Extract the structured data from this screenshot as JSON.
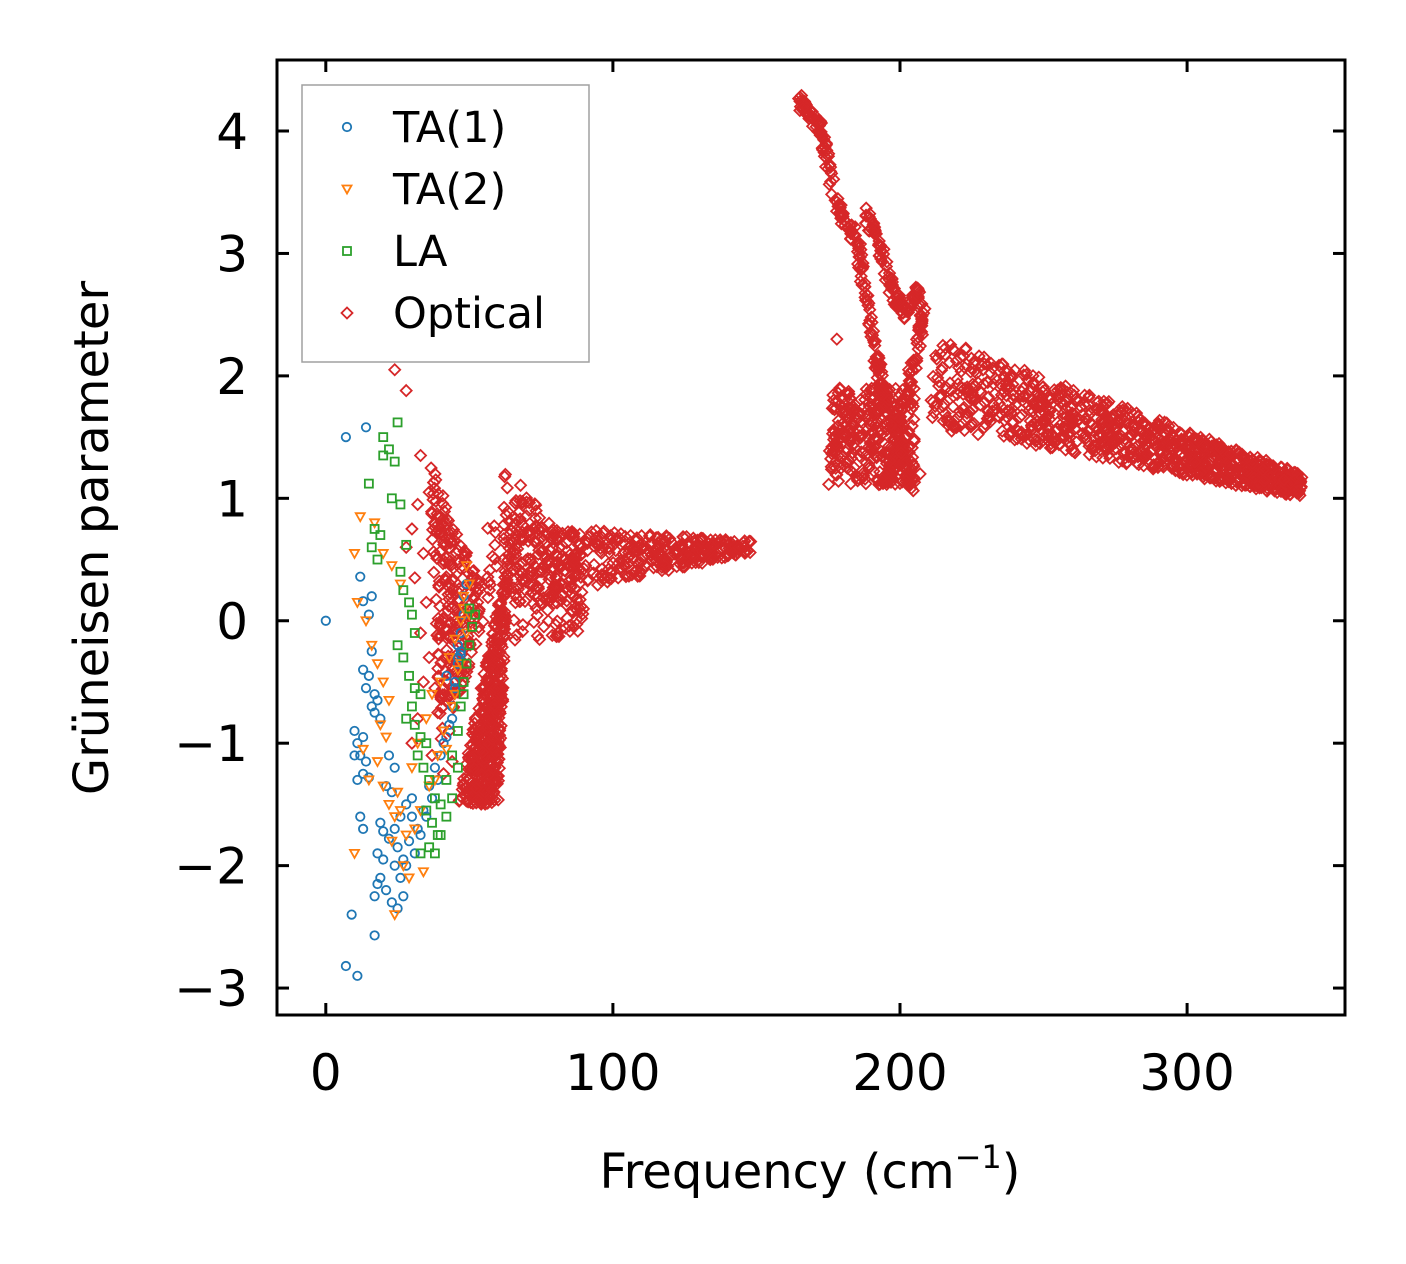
{
  "chart_data": {
    "type": "scatter",
    "title": "",
    "xlabel": "Frequency (cm",
    "xlabel_sup": "−1",
    "xlabel_close": ")",
    "ylabel": "Grüneisen parameter",
    "xlim": [
      -17,
      355
    ],
    "ylim": [
      -3.22,
      4.58
    ],
    "xticks": [
      0,
      100,
      200,
      300
    ],
    "yticks": [
      -3,
      -2,
      -1,
      0,
      1,
      2,
      3,
      4
    ],
    "xtick_labels": [
      "0",
      "100",
      "200",
      "300"
    ],
    "ytick_labels": [
      "−3",
      "−2",
      "−1",
      "0",
      "1",
      "2",
      "3",
      "4"
    ],
    "legend_position": "top-left",
    "series": [
      {
        "name": "TA(1)",
        "marker": "circle",
        "color": "#1f77b4",
        "points": [
          [
            0,
            0
          ],
          [
            7,
            1.5
          ],
          [
            14,
            1.58
          ],
          [
            12,
            0.36
          ],
          [
            13,
            0.16
          ],
          [
            15,
            0.05
          ],
          [
            16,
            0.2
          ],
          [
            13,
            -0.4
          ],
          [
            16,
            -0.25
          ],
          [
            15,
            -0.45
          ],
          [
            14,
            -0.55
          ],
          [
            17,
            -0.6
          ],
          [
            18,
            -0.65
          ],
          [
            16,
            -0.7
          ],
          [
            17,
            -0.75
          ],
          [
            19,
            -0.8
          ],
          [
            10,
            -0.9
          ],
          [
            11,
            -1.0
          ],
          [
            13,
            -0.95
          ],
          [
            10,
            -1.1
          ],
          [
            12,
            -1.1
          ],
          [
            14,
            -1.15
          ],
          [
            13,
            -1.25
          ],
          [
            15,
            -1.28
          ],
          [
            11,
            -1.3
          ],
          [
            22,
            -1.1
          ],
          [
            24,
            -1.2
          ],
          [
            21,
            -1.35
          ],
          [
            23,
            -1.4
          ],
          [
            12,
            -1.6
          ],
          [
            13,
            -1.7
          ],
          [
            19,
            -1.65
          ],
          [
            20,
            -1.72
          ],
          [
            22,
            -1.78
          ],
          [
            18,
            -1.9
          ],
          [
            20,
            -1.95
          ],
          [
            19,
            -2.1
          ],
          [
            18,
            -2.15
          ],
          [
            21,
            -2.2
          ],
          [
            17,
            -2.25
          ],
          [
            24,
            -2.0
          ],
          [
            26,
            -2.1
          ],
          [
            23,
            -2.3
          ],
          [
            25,
            -2.35
          ],
          [
            27,
            -2.25
          ],
          [
            9,
            -2.4
          ],
          [
            17,
            -2.57
          ],
          [
            7,
            -2.82
          ],
          [
            11,
            -2.9
          ],
          [
            28,
            -1.5
          ],
          [
            30,
            -1.6
          ],
          [
            32,
            -1.7
          ],
          [
            34,
            -1.55
          ],
          [
            36,
            -1.35
          ],
          [
            38,
            -1.2
          ],
          [
            40,
            -1.1
          ],
          [
            42,
            -0.95
          ],
          [
            43,
            -0.85
          ],
          [
            44,
            -0.7
          ],
          [
            45,
            -0.5
          ],
          [
            46,
            -0.35
          ],
          [
            47,
            -0.25
          ],
          [
            47,
            -0.1
          ],
          [
            48,
            0.05
          ],
          [
            48,
            0.2
          ],
          [
            49,
            0.3
          ],
          [
            29,
            -1.8
          ],
          [
            31,
            -1.9
          ],
          [
            33,
            -1.75
          ],
          [
            35,
            -1.6
          ],
          [
            37,
            -1.45
          ],
          [
            39,
            -1.3
          ],
          [
            41,
            -1.0
          ],
          [
            44,
            -0.8
          ],
          [
            46,
            -0.3
          ],
          [
            46,
            -0.2
          ],
          [
            47,
            -0.28
          ],
          [
            45,
            -0.55
          ],
          [
            42,
            -0.45
          ],
          [
            27,
            -1.95
          ],
          [
            25,
            -1.85
          ],
          [
            24,
            -1.7
          ],
          [
            26,
            -1.6
          ],
          [
            28,
            -2.0
          ],
          [
            30,
            -1.45
          ]
        ]
      },
      {
        "name": "TA(2)",
        "marker": "triangle-down",
        "color": "#ff7f0e",
        "points": [
          [
            12,
            0.85
          ],
          [
            17,
            0.8
          ],
          [
            10,
            0.55
          ],
          [
            20,
            0.55
          ],
          [
            23,
            0.45
          ],
          [
            26,
            0.3
          ],
          [
            11,
            0.15
          ],
          [
            14,
            0.0
          ],
          [
            16,
            -0.2
          ],
          [
            18,
            -0.35
          ],
          [
            20,
            -0.5
          ],
          [
            22,
            -0.65
          ],
          [
            19,
            -0.85
          ],
          [
            21,
            -0.95
          ],
          [
            13,
            -1.05
          ],
          [
            18,
            -1.15
          ],
          [
            15,
            -1.3
          ],
          [
            20,
            -1.35
          ],
          [
            22,
            -1.5
          ],
          [
            25,
            -1.4
          ],
          [
            24,
            -1.6
          ],
          [
            26,
            -1.55
          ],
          [
            28,
            -1.75
          ],
          [
            23,
            -1.8
          ],
          [
            10,
            -1.9
          ],
          [
            27,
            -2.0
          ],
          [
            29,
            -2.1
          ],
          [
            34,
            -2.05
          ],
          [
            24,
            -2.4
          ],
          [
            30,
            -1.2
          ],
          [
            32,
            -1.0
          ],
          [
            35,
            -0.8
          ],
          [
            37,
            -0.6
          ],
          [
            40,
            -0.5
          ],
          [
            43,
            -0.3
          ],
          [
            45,
            -0.15
          ],
          [
            47,
            0.0
          ],
          [
            48,
            0.2
          ],
          [
            49,
            0.45
          ],
          [
            50,
            0.3
          ],
          [
            48,
            0.1
          ],
          [
            46,
            -0.4
          ],
          [
            44,
            -0.7
          ],
          [
            41,
            -0.9
          ],
          [
            39,
            -1.1
          ],
          [
            36,
            -1.35
          ],
          [
            33,
            -1.55
          ],
          [
            31,
            -1.7
          ],
          [
            38,
            -1.3
          ],
          [
            42,
            -1.05
          ],
          [
            45,
            -0.6
          ],
          [
            47,
            -0.35
          ],
          [
            49,
            -0.1
          ],
          [
            50,
            0.05
          ]
        ]
      },
      {
        "name": "LA",
        "marker": "square",
        "color": "#2ca02c",
        "points": [
          [
            25,
            1.62
          ],
          [
            20,
            1.5
          ],
          [
            22,
            1.4
          ],
          [
            20,
            1.35
          ],
          [
            24,
            1.3
          ],
          [
            15,
            1.12
          ],
          [
            23,
            1.0
          ],
          [
            26,
            0.95
          ],
          [
            17,
            0.75
          ],
          [
            19,
            0.7
          ],
          [
            16,
            0.6
          ],
          [
            18,
            0.5
          ],
          [
            28,
            0.62
          ],
          [
            26,
            0.4
          ],
          [
            27,
            0.25
          ],
          [
            29,
            0.15
          ],
          [
            30,
            0.05
          ],
          [
            31,
            -0.1
          ],
          [
            25,
            -0.2
          ],
          [
            27,
            -0.3
          ],
          [
            29,
            -0.45
          ],
          [
            31,
            -0.55
          ],
          [
            33,
            -0.6
          ],
          [
            30,
            -0.7
          ],
          [
            28,
            -0.8
          ],
          [
            31,
            -0.85
          ],
          [
            33,
            -0.95
          ],
          [
            35,
            -1.0
          ],
          [
            32,
            -1.1
          ],
          [
            34,
            -1.2
          ],
          [
            36,
            -1.3
          ],
          [
            38,
            -1.45
          ],
          [
            35,
            -1.55
          ],
          [
            37,
            -1.65
          ],
          [
            39,
            -1.75
          ],
          [
            36,
            -1.85
          ],
          [
            40,
            -1.5
          ],
          [
            42,
            -1.3
          ],
          [
            44,
            -1.1
          ],
          [
            46,
            -0.9
          ],
          [
            47,
            -0.7
          ],
          [
            48,
            -0.5
          ],
          [
            49,
            -0.35
          ],
          [
            50,
            -0.2
          ],
          [
            51,
            -0.05
          ],
          [
            52,
            0.05
          ],
          [
            50,
            0.1
          ],
          [
            48,
            -0.6
          ],
          [
            46,
            -1.2
          ],
          [
            44,
            -1.45
          ],
          [
            42,
            -1.6
          ],
          [
            40,
            -1.75
          ],
          [
            38,
            -1.9
          ],
          [
            33,
            -1.9
          ]
        ]
      },
      {
        "name": "Optical",
        "marker": "diamond",
        "color": "#d62728",
        "clusters": [
          {
            "type": "triangle",
            "base": [
              [
                46,
                -1.5
              ],
              [
                60,
                -1.5
              ]
            ],
            "apex": [
              64,
              0.6
            ],
            "n": 450
          },
          {
            "type": "triangle",
            "base": [
              [
                36,
                1.3
              ],
              [
                40,
                -1.0
              ]
            ],
            "apex": [
              58,
              0.1
            ],
            "n": 240
          },
          {
            "type": "band",
            "x_range": [
              55,
              148
            ],
            "y_start": [
              0.1,
              0.8
            ],
            "y_end": [
              0.55,
              0.65
            ],
            "n": 420
          },
          {
            "type": "band",
            "x_range": [
              62,
              90
            ],
            "y_start": [
              -0.2,
              1.3
            ],
            "y_end": [
              -0.1,
              0.5
            ],
            "n": 180
          },
          {
            "type": "curve",
            "points": [
              [
                165,
                4.25
              ],
              [
                168,
                4.15
              ],
              [
                172,
                4.05
              ],
              [
                174,
                3.8
              ],
              [
                176,
                3.6
              ],
              [
                178,
                3.45
              ],
              [
                180,
                3.3
              ],
              [
                183,
                3.2
              ],
              [
                186,
                3.0
              ],
              [
                188,
                2.7
              ],
              [
                190,
                2.4
              ],
              [
                192,
                2.1
              ],
              [
                194,
                1.9
              ],
              [
                196,
                1.7
              ],
              [
                198,
                1.55
              ],
              [
                200,
                1.4
              ],
              [
                202,
                1.2
              ],
              [
                205,
                1.1
              ]
            ],
            "spread": 0.06,
            "n": 260
          },
          {
            "type": "curve",
            "points": [
              [
                188,
                3.35
              ],
              [
                192,
                3.1
              ],
              [
                195,
                2.9
              ],
              [
                198,
                2.65
              ],
              [
                202,
                2.5
              ],
              [
                206,
                2.7
              ],
              [
                208,
                2.5
              ],
              [
                206,
                2.2
              ],
              [
                203,
                1.9
              ],
              [
                200,
                1.6
              ],
              [
                198,
                1.3
              ],
              [
                196,
                1.15
              ]
            ],
            "spread": 0.06,
            "n": 200
          },
          {
            "type": "blob",
            "x_range": [
              175,
              205
            ],
            "y_range": [
              1.1,
              1.9
            ],
            "n": 300
          },
          {
            "type": "band",
            "x_range": [
              210,
              340
            ],
            "y_start": [
              1.6,
              2.35
            ],
            "y_end": [
              1.0,
              1.2
            ],
            "n": 1000
          }
        ],
        "points": [
          [
            24,
            2.05
          ],
          [
            28,
            1.88
          ],
          [
            33,
            1.35
          ],
          [
            38,
            1.2
          ],
          [
            36,
            1.05
          ],
          [
            40,
            0.85
          ],
          [
            32,
            0.95
          ],
          [
            30,
            0.75
          ],
          [
            34,
            0.55
          ],
          [
            28,
            0.6
          ],
          [
            31,
            0.35
          ],
          [
            35,
            0.15
          ],
          [
            33,
            -0.1
          ],
          [
            36,
            -0.3
          ],
          [
            34,
            -0.5
          ],
          [
            38,
            -0.55
          ],
          [
            32,
            -0.8
          ],
          [
            30,
            -1.0
          ],
          [
            37,
            -1.1
          ],
          [
            41,
            -1.25
          ],
          [
            44,
            -1.15
          ],
          [
            43,
            -0.9
          ],
          [
            39,
            -0.75
          ],
          [
            178,
            2.3
          ],
          [
            179,
            1.9
          ],
          [
            181,
            1.7
          ],
          [
            186,
            1.55
          ],
          [
            190,
            1.45
          ],
          [
            194,
            1.35
          ],
          [
            197,
            1.6
          ],
          [
            200,
            1.85
          ],
          [
            202,
            1.5
          ],
          [
            204,
            1.3
          ],
          [
            207,
            1.2
          ],
          [
            203,
            2.05
          ],
          [
            215,
            1.75
          ],
          [
            218,
            1.55
          ],
          [
            222,
            1.85
          ]
        ]
      }
    ]
  }
}
